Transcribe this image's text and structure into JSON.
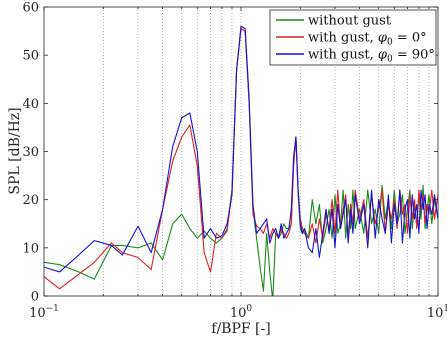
{
  "chart_data": {
    "type": "line",
    "title": "",
    "xlabel": "f/BPF [-]",
    "ylabel": "SPL [dB/Hz]",
    "xscale": "log",
    "xlim": [
      0.1,
      10
    ],
    "ylim": [
      0,
      60
    ],
    "grid": "x-major-and-minor-dotted",
    "legend_position": "top-right",
    "x_ticks": [
      {
        "value": 0.1,
        "base": "10",
        "exp": "−1"
      },
      {
        "value": 1,
        "base": "10",
        "exp": "0"
      },
      {
        "value": 10,
        "base": "10",
        "exp": "1"
      }
    ],
    "y_ticks": [
      0,
      10,
      20,
      30,
      40,
      50,
      60
    ],
    "series": [
      {
        "name_prefix": "without gust",
        "name_math": "",
        "color": "#1a8a1a",
        "x": [
          0.1,
          0.12,
          0.15,
          0.18,
          0.22,
          0.25,
          0.3,
          0.35,
          0.4,
          0.45,
          0.5,
          0.55,
          0.6,
          0.65,
          0.7,
          0.75,
          0.8,
          0.85,
          0.9,
          0.95,
          1.0,
          1.05,
          1.1,
          1.15,
          1.2,
          1.25,
          1.3,
          1.35,
          1.4,
          1.45,
          1.5,
          1.55,
          1.6,
          1.65,
          1.7,
          1.75,
          1.8,
          1.85,
          1.9,
          1.95,
          2.0,
          2.05,
          2.1,
          2.2,
          2.3,
          2.4,
          2.5,
          2.6,
          2.7,
          2.8,
          2.9,
          3.0,
          3.1,
          3.2,
          3.3,
          3.4,
          3.5,
          3.6,
          3.7,
          3.8,
          4.0,
          4.2,
          4.4,
          4.6,
          4.8,
          5.0,
          5.2,
          5.4,
          5.6,
          5.8,
          6.0,
          6.2,
          6.4,
          6.6,
          6.8,
          7.0,
          7.2,
          7.4,
          7.6,
          7.8,
          8.0,
          8.2,
          8.4,
          8.6,
          8.8,
          9.0,
          9.3,
          9.6,
          10.0
        ],
        "y": [
          7,
          6.5,
          5,
          3.5,
          10.5,
          10.5,
          10,
          11,
          7.5,
          15,
          17,
          14,
          12,
          13.5,
          12,
          11,
          12,
          14,
          22,
          47,
          55.5,
          55,
          40,
          18,
          12,
          6,
          1,
          13,
          5,
          -1,
          13,
          12,
          13,
          15,
          14,
          14,
          15,
          28,
          33,
          21,
          14,
          13,
          14,
          12,
          20,
          15,
          19,
          11,
          14,
          18,
          12,
          21,
          13,
          15,
          22,
          12,
          19,
          14,
          22,
          14,
          18,
          13,
          22,
          15,
          18,
          13,
          23,
          16,
          20,
          14,
          22,
          15,
          17,
          21,
          13,
          18,
          22,
          14,
          19,
          15,
          21,
          16,
          23,
          14,
          18,
          21,
          15,
          20,
          16
        ]
      },
      {
        "name_prefix": "with gust, ",
        "name_math": "φ0 = 0°",
        "color": "#e02020",
        "x": [
          0.1,
          0.12,
          0.15,
          0.18,
          0.22,
          0.25,
          0.3,
          0.35,
          0.4,
          0.45,
          0.5,
          0.55,
          0.6,
          0.65,
          0.7,
          0.75,
          0.8,
          0.85,
          0.9,
          0.95,
          1.0,
          1.05,
          1.1,
          1.15,
          1.2,
          1.25,
          1.3,
          1.35,
          1.4,
          1.45,
          1.5,
          1.55,
          1.6,
          1.65,
          1.7,
          1.75,
          1.8,
          1.85,
          1.9,
          1.95,
          2.0,
          2.05,
          2.1,
          2.2,
          2.3,
          2.4,
          2.5,
          2.6,
          2.7,
          2.8,
          2.9,
          3.0,
          3.1,
          3.2,
          3.3,
          3.4,
          3.5,
          3.6,
          3.7,
          3.8,
          4.0,
          4.2,
          4.4,
          4.6,
          4.8,
          5.0,
          5.2,
          5.4,
          5.6,
          5.8,
          6.0,
          6.2,
          6.4,
          6.6,
          6.8,
          7.0,
          7.2,
          7.4,
          7.6,
          7.8,
          8.0,
          8.2,
          8.4,
          8.6,
          8.8,
          9.0,
          9.3,
          9.6,
          10.0
        ],
        "y": [
          4,
          1.5,
          4.5,
          7,
          11,
          9,
          8,
          5.5,
          18,
          28,
          33,
          35.5,
          27,
          9,
          5,
          13,
          12,
          13.5,
          22,
          47,
          55.5,
          55,
          40,
          17,
          14.5,
          14,
          13,
          15,
          12,
          14,
          13,
          12,
          14,
          13,
          12,
          13,
          15,
          27,
          33,
          22,
          16,
          14,
          13,
          12,
          15,
          11,
          16,
          12,
          17,
          14,
          20,
          13,
          22,
          14,
          18,
          21,
          12,
          19,
          15,
          22,
          16,
          20,
          12,
          21,
          15,
          18,
          22,
          13,
          19,
          16,
          20,
          14,
          22,
          17,
          19,
          13,
          21,
          16,
          20,
          14,
          22,
          18,
          21,
          15,
          19,
          17,
          22,
          16,
          21
        ]
      },
      {
        "name_prefix": "with gust, ",
        "name_math": "φ0 = 90°",
        "color": "#1414d2",
        "x": [
          0.1,
          0.12,
          0.15,
          0.18,
          0.22,
          0.25,
          0.3,
          0.35,
          0.4,
          0.45,
          0.5,
          0.55,
          0.6,
          0.65,
          0.7,
          0.75,
          0.8,
          0.85,
          0.9,
          0.95,
          1.0,
          1.05,
          1.1,
          1.15,
          1.2,
          1.25,
          1.3,
          1.35,
          1.4,
          1.45,
          1.5,
          1.55,
          1.6,
          1.65,
          1.7,
          1.75,
          1.8,
          1.85,
          1.9,
          1.95,
          2.0,
          2.05,
          2.1,
          2.2,
          2.3,
          2.4,
          2.5,
          2.6,
          2.7,
          2.8,
          2.9,
          3.0,
          3.1,
          3.2,
          3.3,
          3.4,
          3.5,
          3.6,
          3.7,
          3.8,
          4.0,
          4.2,
          4.4,
          4.6,
          4.8,
          5.0,
          5.2,
          5.4,
          5.6,
          5.8,
          6.0,
          6.2,
          6.4,
          6.6,
          6.8,
          7.0,
          7.2,
          7.4,
          7.6,
          7.8,
          8.0,
          8.2,
          8.4,
          8.6,
          8.8,
          9.0,
          9.3,
          9.6,
          10.0
        ],
        "y": [
          6,
          5,
          8.5,
          11.5,
          10.5,
          8.5,
          14.5,
          9,
          18,
          31,
          37,
          38,
          30,
          12,
          14,
          12,
          12.5,
          15,
          21,
          47,
          56,
          55.5,
          41,
          19,
          13,
          14,
          15,
          16,
          11,
          13,
          14,
          12,
          15,
          12,
          13,
          14,
          18,
          29,
          33,
          22,
          15,
          13,
          14,
          10,
          9,
          14,
          8,
          13,
          18,
          13,
          18,
          10,
          19,
          14,
          17,
          20,
          11,
          18,
          13,
          21,
          15,
          19,
          10,
          22,
          12,
          20,
          16,
          13,
          21,
          11,
          19,
          15,
          22,
          11,
          18,
          20,
          12,
          21,
          16,
          19,
          13,
          22,
          18,
          21,
          14,
          19,
          17,
          21,
          16
        ]
      }
    ]
  }
}
